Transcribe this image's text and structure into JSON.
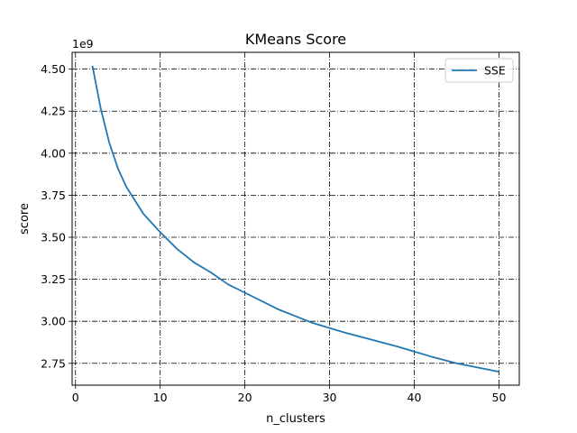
{
  "chart_data": {
    "type": "line",
    "title": "KMeans Score",
    "xlabel": "n_clusters",
    "ylabel": "score",
    "y_offset_label": "1e9",
    "xlim": [
      -0.4,
      52.4
    ],
    "ylim": [
      2.62,
      4.6
    ],
    "x_ticks": [
      0,
      10,
      20,
      30,
      40,
      50
    ],
    "x_tick_labels": [
      "0",
      "10",
      "20",
      "30",
      "40",
      "50"
    ],
    "y_ticks": [
      2.75,
      3.0,
      3.25,
      3.5,
      3.75,
      4.0,
      4.25,
      4.5
    ],
    "y_tick_labels": [
      "2.75",
      "3.00",
      "3.25",
      "3.50",
      "3.75",
      "4.00",
      "4.25",
      "4.50"
    ],
    "grid": true,
    "legend_position": "upper right",
    "series": [
      {
        "name": "SSE",
        "color": "#1f77b4",
        "x": [
          2,
          3,
          4,
          5,
          6,
          7,
          8,
          10,
          12,
          14,
          16,
          18,
          20,
          22,
          24,
          26,
          28,
          30,
          32,
          35,
          38,
          40,
          42,
          45,
          48,
          50
        ],
        "y": [
          4.52,
          4.26,
          4.06,
          3.91,
          3.8,
          3.72,
          3.64,
          3.53,
          3.43,
          3.35,
          3.29,
          3.22,
          3.17,
          3.12,
          3.07,
          3.03,
          2.99,
          2.96,
          2.93,
          2.89,
          2.85,
          2.82,
          2.79,
          2.75,
          2.72,
          2.7
        ]
      }
    ]
  }
}
